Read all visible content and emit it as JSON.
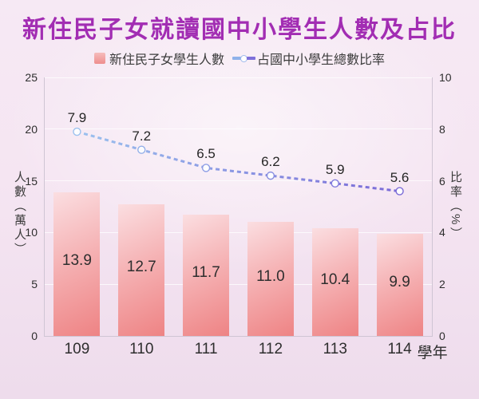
{
  "title": {
    "text": "新住民子女就讀國中小學生人數及占比",
    "color": "#a22db3"
  },
  "legend": {
    "bar_label": "新住民子女學生人數",
    "line_label": "占國中小學生總數比率"
  },
  "chart_data": {
    "type": "bar",
    "subtype": "combo-bar-line-dual-axis",
    "title": "新住民子女就讀國中小學生人數及占比",
    "categories": [
      "109",
      "110",
      "111",
      "112",
      "113",
      "114"
    ],
    "x_axis_unit": "學年",
    "series": [
      {
        "name": "新住民子女學生人數",
        "type": "bar",
        "axis": "left",
        "values": [
          13.9,
          12.7,
          11.7,
          11.0,
          10.4,
          9.9
        ]
      },
      {
        "name": "占國中小學生總數比率",
        "type": "line",
        "axis": "right",
        "style": "dashed",
        "values": [
          7.9,
          7.2,
          6.5,
          6.2,
          5.9,
          5.6
        ]
      }
    ],
    "left_axis": {
      "label": "人數（萬人）",
      "min": 0,
      "max": 25,
      "ticks": [
        0,
        5,
        10,
        15,
        20,
        25
      ]
    },
    "right_axis": {
      "label": "比率（%）",
      "min": 0,
      "max": 10,
      "ticks": [
        0,
        2,
        4,
        6,
        8,
        10
      ]
    },
    "grid": "horizontal",
    "legend_position": "top",
    "colors": {
      "title": "#a22db3",
      "bar_gradient_top": "#fbdee1",
      "bar_gradient_bottom": "#ee8384",
      "line_start": "#9bc1ee",
      "line_end": "#7a6ad7",
      "marker_fill": "#ffffff",
      "label_text": "#2e2e2e"
    }
  }
}
